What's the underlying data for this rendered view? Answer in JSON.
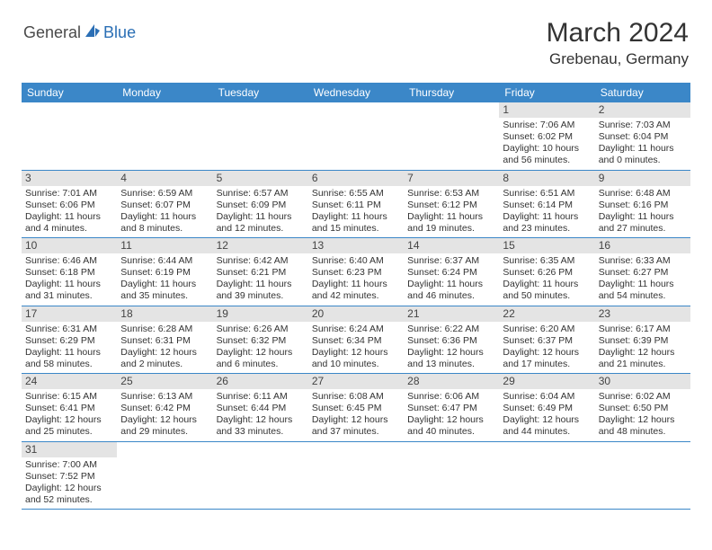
{
  "brand": {
    "text1": "General",
    "text2": "Blue"
  },
  "title": "March 2024",
  "location": "Grebenau, Germany",
  "header_bg": "#3b87c8",
  "daynum_bg": "#e4e4e4",
  "border_color": "#3b87c8",
  "dow": [
    "Sunday",
    "Monday",
    "Tuesday",
    "Wednesday",
    "Thursday",
    "Friday",
    "Saturday"
  ],
  "weeks": [
    [
      null,
      null,
      null,
      null,
      null,
      {
        "n": "1",
        "sr": "Sunrise: 7:06 AM",
        "ss": "Sunset: 6:02 PM",
        "d1": "Daylight: 10 hours",
        "d2": "and 56 minutes."
      },
      {
        "n": "2",
        "sr": "Sunrise: 7:03 AM",
        "ss": "Sunset: 6:04 PM",
        "d1": "Daylight: 11 hours",
        "d2": "and 0 minutes."
      }
    ],
    [
      {
        "n": "3",
        "sr": "Sunrise: 7:01 AM",
        "ss": "Sunset: 6:06 PM",
        "d1": "Daylight: 11 hours",
        "d2": "and 4 minutes."
      },
      {
        "n": "4",
        "sr": "Sunrise: 6:59 AM",
        "ss": "Sunset: 6:07 PM",
        "d1": "Daylight: 11 hours",
        "d2": "and 8 minutes."
      },
      {
        "n": "5",
        "sr": "Sunrise: 6:57 AM",
        "ss": "Sunset: 6:09 PM",
        "d1": "Daylight: 11 hours",
        "d2": "and 12 minutes."
      },
      {
        "n": "6",
        "sr": "Sunrise: 6:55 AM",
        "ss": "Sunset: 6:11 PM",
        "d1": "Daylight: 11 hours",
        "d2": "and 15 minutes."
      },
      {
        "n": "7",
        "sr": "Sunrise: 6:53 AM",
        "ss": "Sunset: 6:12 PM",
        "d1": "Daylight: 11 hours",
        "d2": "and 19 minutes."
      },
      {
        "n": "8",
        "sr": "Sunrise: 6:51 AM",
        "ss": "Sunset: 6:14 PM",
        "d1": "Daylight: 11 hours",
        "d2": "and 23 minutes."
      },
      {
        "n": "9",
        "sr": "Sunrise: 6:48 AM",
        "ss": "Sunset: 6:16 PM",
        "d1": "Daylight: 11 hours",
        "d2": "and 27 minutes."
      }
    ],
    [
      {
        "n": "10",
        "sr": "Sunrise: 6:46 AM",
        "ss": "Sunset: 6:18 PM",
        "d1": "Daylight: 11 hours",
        "d2": "and 31 minutes."
      },
      {
        "n": "11",
        "sr": "Sunrise: 6:44 AM",
        "ss": "Sunset: 6:19 PM",
        "d1": "Daylight: 11 hours",
        "d2": "and 35 minutes."
      },
      {
        "n": "12",
        "sr": "Sunrise: 6:42 AM",
        "ss": "Sunset: 6:21 PM",
        "d1": "Daylight: 11 hours",
        "d2": "and 39 minutes."
      },
      {
        "n": "13",
        "sr": "Sunrise: 6:40 AM",
        "ss": "Sunset: 6:23 PM",
        "d1": "Daylight: 11 hours",
        "d2": "and 42 minutes."
      },
      {
        "n": "14",
        "sr": "Sunrise: 6:37 AM",
        "ss": "Sunset: 6:24 PM",
        "d1": "Daylight: 11 hours",
        "d2": "and 46 minutes."
      },
      {
        "n": "15",
        "sr": "Sunrise: 6:35 AM",
        "ss": "Sunset: 6:26 PM",
        "d1": "Daylight: 11 hours",
        "d2": "and 50 minutes."
      },
      {
        "n": "16",
        "sr": "Sunrise: 6:33 AM",
        "ss": "Sunset: 6:27 PM",
        "d1": "Daylight: 11 hours",
        "d2": "and 54 minutes."
      }
    ],
    [
      {
        "n": "17",
        "sr": "Sunrise: 6:31 AM",
        "ss": "Sunset: 6:29 PM",
        "d1": "Daylight: 11 hours",
        "d2": "and 58 minutes."
      },
      {
        "n": "18",
        "sr": "Sunrise: 6:28 AM",
        "ss": "Sunset: 6:31 PM",
        "d1": "Daylight: 12 hours",
        "d2": "and 2 minutes."
      },
      {
        "n": "19",
        "sr": "Sunrise: 6:26 AM",
        "ss": "Sunset: 6:32 PM",
        "d1": "Daylight: 12 hours",
        "d2": "and 6 minutes."
      },
      {
        "n": "20",
        "sr": "Sunrise: 6:24 AM",
        "ss": "Sunset: 6:34 PM",
        "d1": "Daylight: 12 hours",
        "d2": "and 10 minutes."
      },
      {
        "n": "21",
        "sr": "Sunrise: 6:22 AM",
        "ss": "Sunset: 6:36 PM",
        "d1": "Daylight: 12 hours",
        "d2": "and 13 minutes."
      },
      {
        "n": "22",
        "sr": "Sunrise: 6:20 AM",
        "ss": "Sunset: 6:37 PM",
        "d1": "Daylight: 12 hours",
        "d2": "and 17 minutes."
      },
      {
        "n": "23",
        "sr": "Sunrise: 6:17 AM",
        "ss": "Sunset: 6:39 PM",
        "d1": "Daylight: 12 hours",
        "d2": "and 21 minutes."
      }
    ],
    [
      {
        "n": "24",
        "sr": "Sunrise: 6:15 AM",
        "ss": "Sunset: 6:41 PM",
        "d1": "Daylight: 12 hours",
        "d2": "and 25 minutes."
      },
      {
        "n": "25",
        "sr": "Sunrise: 6:13 AM",
        "ss": "Sunset: 6:42 PM",
        "d1": "Daylight: 12 hours",
        "d2": "and 29 minutes."
      },
      {
        "n": "26",
        "sr": "Sunrise: 6:11 AM",
        "ss": "Sunset: 6:44 PM",
        "d1": "Daylight: 12 hours",
        "d2": "and 33 minutes."
      },
      {
        "n": "27",
        "sr": "Sunrise: 6:08 AM",
        "ss": "Sunset: 6:45 PM",
        "d1": "Daylight: 12 hours",
        "d2": "and 37 minutes."
      },
      {
        "n": "28",
        "sr": "Sunrise: 6:06 AM",
        "ss": "Sunset: 6:47 PM",
        "d1": "Daylight: 12 hours",
        "d2": "and 40 minutes."
      },
      {
        "n": "29",
        "sr": "Sunrise: 6:04 AM",
        "ss": "Sunset: 6:49 PM",
        "d1": "Daylight: 12 hours",
        "d2": "and 44 minutes."
      },
      {
        "n": "30",
        "sr": "Sunrise: 6:02 AM",
        "ss": "Sunset: 6:50 PM",
        "d1": "Daylight: 12 hours",
        "d2": "and 48 minutes."
      }
    ],
    [
      {
        "n": "31",
        "sr": "Sunrise: 7:00 AM",
        "ss": "Sunset: 7:52 PM",
        "d1": "Daylight: 12 hours",
        "d2": "and 52 minutes."
      },
      null,
      null,
      null,
      null,
      null,
      null
    ]
  ]
}
